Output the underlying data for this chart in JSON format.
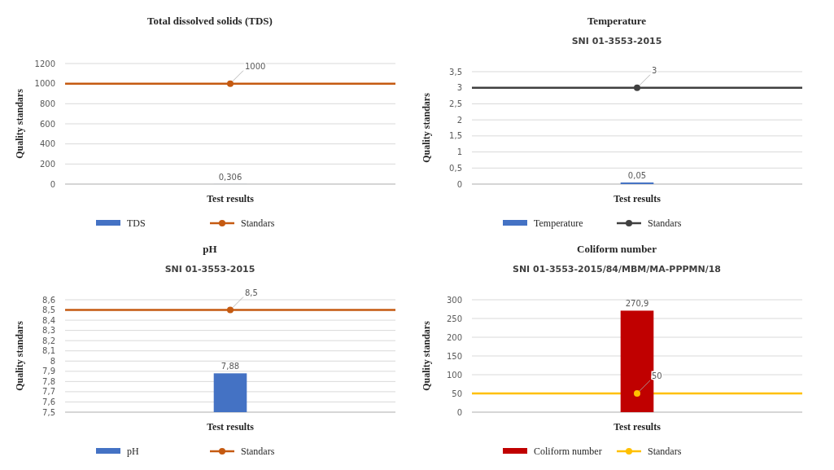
{
  "chart_data": [
    {
      "type": "bar",
      "title": "Total dissolved solids (TDS)",
      "xlabel": "Test results",
      "ylabel": "Quality standars",
      "categories": [
        null
      ],
      "ylim": [
        0,
        1200
      ],
      "yticks": [
        0,
        200,
        400,
        600,
        800,
        1000,
        1200
      ],
      "grid": "y",
      "legend": "bottom",
      "marker": "circle",
      "ref_lines": [
        {
          "axis": "y",
          "value": 1000,
          "color": "#c55a11"
        }
      ],
      "series": [
        {
          "name": "TDS",
          "color": "#4472c4",
          "values": [
            0.306
          ],
          "value_labels": [
            "0,306"
          ]
        },
        {
          "type": "line",
          "name": "Standars",
          "color": "#c55a11",
          "values": [
            1000
          ],
          "value_labels": [
            "1000"
          ]
        }
      ]
    },
    {
      "type": "bar",
      "title": "Temperature",
      "subtitle": "SNI 01-3553-2015",
      "xlabel": "Test results",
      "ylabel": "Quality standars",
      "categories": [
        null
      ],
      "ylim": [
        0,
        3.5
      ],
      "yticks": [
        0,
        {
          "value": 0.5,
          "label": "0,5"
        },
        1,
        {
          "value": 1.5,
          "label": "1,5"
        },
        2,
        {
          "value": 2.5,
          "label": "2,5"
        },
        3,
        {
          "value": 3.5,
          "label": "3,5"
        }
      ],
      "grid": "y",
      "legend": "bottom",
      "marker": "circle",
      "ref_lines": [
        {
          "axis": "y",
          "value": 3,
          "color": "#404040"
        }
      ],
      "series": [
        {
          "name": "Temperature",
          "color": "#4472c4",
          "values": [
            0.05
          ],
          "value_labels": [
            "0,05"
          ]
        },
        {
          "type": "line",
          "name": "Standars",
          "color": "#404040",
          "values": [
            3
          ],
          "value_labels": [
            "3"
          ]
        }
      ]
    },
    {
      "type": "bar",
      "title": "pH",
      "subtitle": "SNI 01-3553-2015",
      "xlabel": "Test results",
      "ylabel": "Quality standars",
      "categories": [
        null
      ],
      "ylim": [
        7.5,
        8.6
      ],
      "yticks": [
        {
          "value": 7.5,
          "label": "7,5"
        },
        {
          "value": 7.6,
          "label": "7,6"
        },
        {
          "value": 7.7,
          "label": "7,7"
        },
        {
          "value": 7.8,
          "label": "7,8"
        },
        {
          "value": 7.9,
          "label": "7,9"
        },
        8,
        {
          "value": 8.1,
          "label": "8,1"
        },
        {
          "value": 8.2,
          "label": "8,2"
        },
        {
          "value": 8.3,
          "label": "8,3"
        },
        {
          "value": 8.4,
          "label": "8,4"
        },
        {
          "value": 8.5,
          "label": "8,5"
        },
        {
          "value": 8.6,
          "label": "8,6"
        }
      ],
      "grid": "y",
      "legend": "bottom",
      "marker": "circle",
      "ref_lines": [
        {
          "axis": "y",
          "value": 8.5,
          "color": "#c55a11"
        }
      ],
      "series": [
        {
          "name": "pH",
          "color": "#4472c4",
          "values": [
            7.88
          ],
          "value_labels": [
            "7,88"
          ]
        },
        {
          "type": "line",
          "name": "Standars",
          "color": "#c55a11",
          "values": [
            8.5
          ],
          "value_labels": [
            "8,5"
          ]
        }
      ]
    },
    {
      "type": "bar",
      "title": "Coliform number",
      "subtitle": "SNI 01-3553-2015/84/MBM/MA-PPPMN/18",
      "xlabel": "Test results",
      "ylabel": "Quality standars",
      "categories": [
        null
      ],
      "ylim": [
        0,
        300
      ],
      "yticks": [
        0,
        50,
        100,
        150,
        200,
        250,
        300
      ],
      "grid": "y",
      "legend": "bottom",
      "marker": "circle",
      "ref_lines": [
        {
          "axis": "y",
          "value": 50,
          "color": "#ffc000"
        }
      ],
      "series": [
        {
          "name": "Coliform number",
          "color": "#c00000",
          "values": [
            270.9
          ],
          "value_labels": [
            "270,9"
          ]
        },
        {
          "type": "line",
          "name": "Standars",
          "color": "#ffc000",
          "values": [
            50
          ],
          "value_labels": [
            "50"
          ]
        }
      ]
    }
  ]
}
